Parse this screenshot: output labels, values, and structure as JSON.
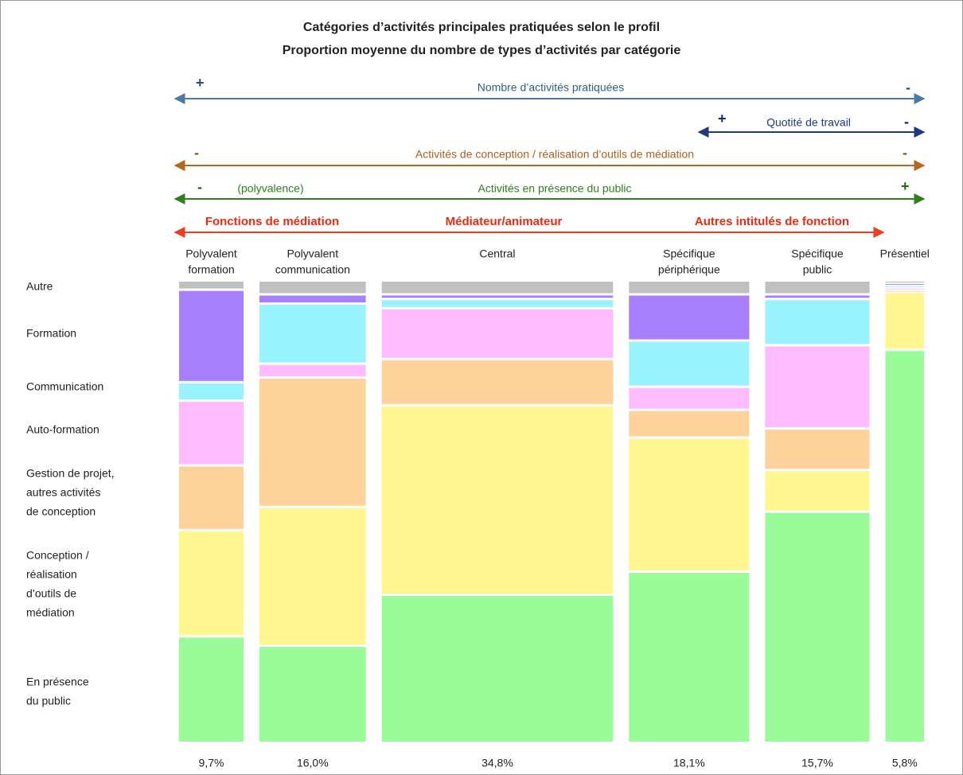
{
  "chart_data": {
    "type": "mosaic",
    "title": "Catégories d’activités principales pratiquées selon le profil",
    "subtitle": "Proportion moyenne du nombre de types d’activités par catégorie",
    "annotations": [
      {
        "label": "Nombre d’activités pratiquées",
        "left": "+",
        "right": "-"
      },
      {
        "label": "Quotité de travail",
        "left": "+",
        "right": "-"
      },
      {
        "label": "Activités de conception / réalisation d’outils de médiation",
        "left": "-",
        "right": "-"
      },
      {
        "label": "Activités en présence du public",
        "left": "-",
        "note": "(polyvalence)",
        "right": "+"
      },
      {
        "labels": [
          "Fonctions de médiation",
          "Médiateur/animateur",
          "Autres intitulés de fonction"
        ]
      }
    ],
    "categories": [
      [
        "Polyvalent",
        "formation"
      ],
      [
        "Polyvalent",
        "communication"
      ],
      [
        "Central"
      ],
      [
        "Spécifique",
        "périphérique"
      ],
      [
        "Spécifique",
        "public"
      ],
      [
        "Présentiel"
      ]
    ],
    "widths": [
      9.7,
      16.0,
      34.8,
      18.1,
      15.7,
      5.8
    ],
    "width_labels": [
      "9,7%",
      "16,0%",
      "34,8%",
      "18,1%",
      "15,7%",
      "5,8%"
    ],
    "series": [
      {
        "name": [
          "En présence",
          "du public"
        ],
        "color": "#99fc99",
        "values": [
          23,
          21,
          32,
          37,
          50,
          85
        ]
      },
      {
        "name": [
          "Conception /",
          "réalisation",
          "d’outils de",
          "médiation"
        ],
        "color": "#fff68f",
        "values": [
          23,
          30,
          41,
          29,
          9,
          12.5
        ]
      },
      {
        "name": [
          "Gestion de projet,",
          "autres activités",
          "de conception"
        ],
        "color": "#ffd29b",
        "values": [
          14,
          28,
          10,
          6,
          9,
          0.5
        ]
      },
      {
        "name": [
          "Auto-formation"
        ],
        "color": "#ffbbff",
        "values": [
          14,
          3,
          11,
          5,
          18,
          0.5
        ]
      },
      {
        "name": [
          "Communication"
        ],
        "color": "#99f3ff",
        "values": [
          4,
          13,
          2,
          10,
          10,
          0.5
        ]
      },
      {
        "name": [
          "Formation"
        ],
        "color": "#a77fff",
        "values": [
          20,
          2,
          1,
          10,
          1,
          0.5
        ]
      },
      {
        "name": [
          "Autre"
        ],
        "color": "#c0c0c0",
        "values": [
          2,
          3,
          3,
          3,
          3,
          0.5
        ]
      }
    ]
  }
}
